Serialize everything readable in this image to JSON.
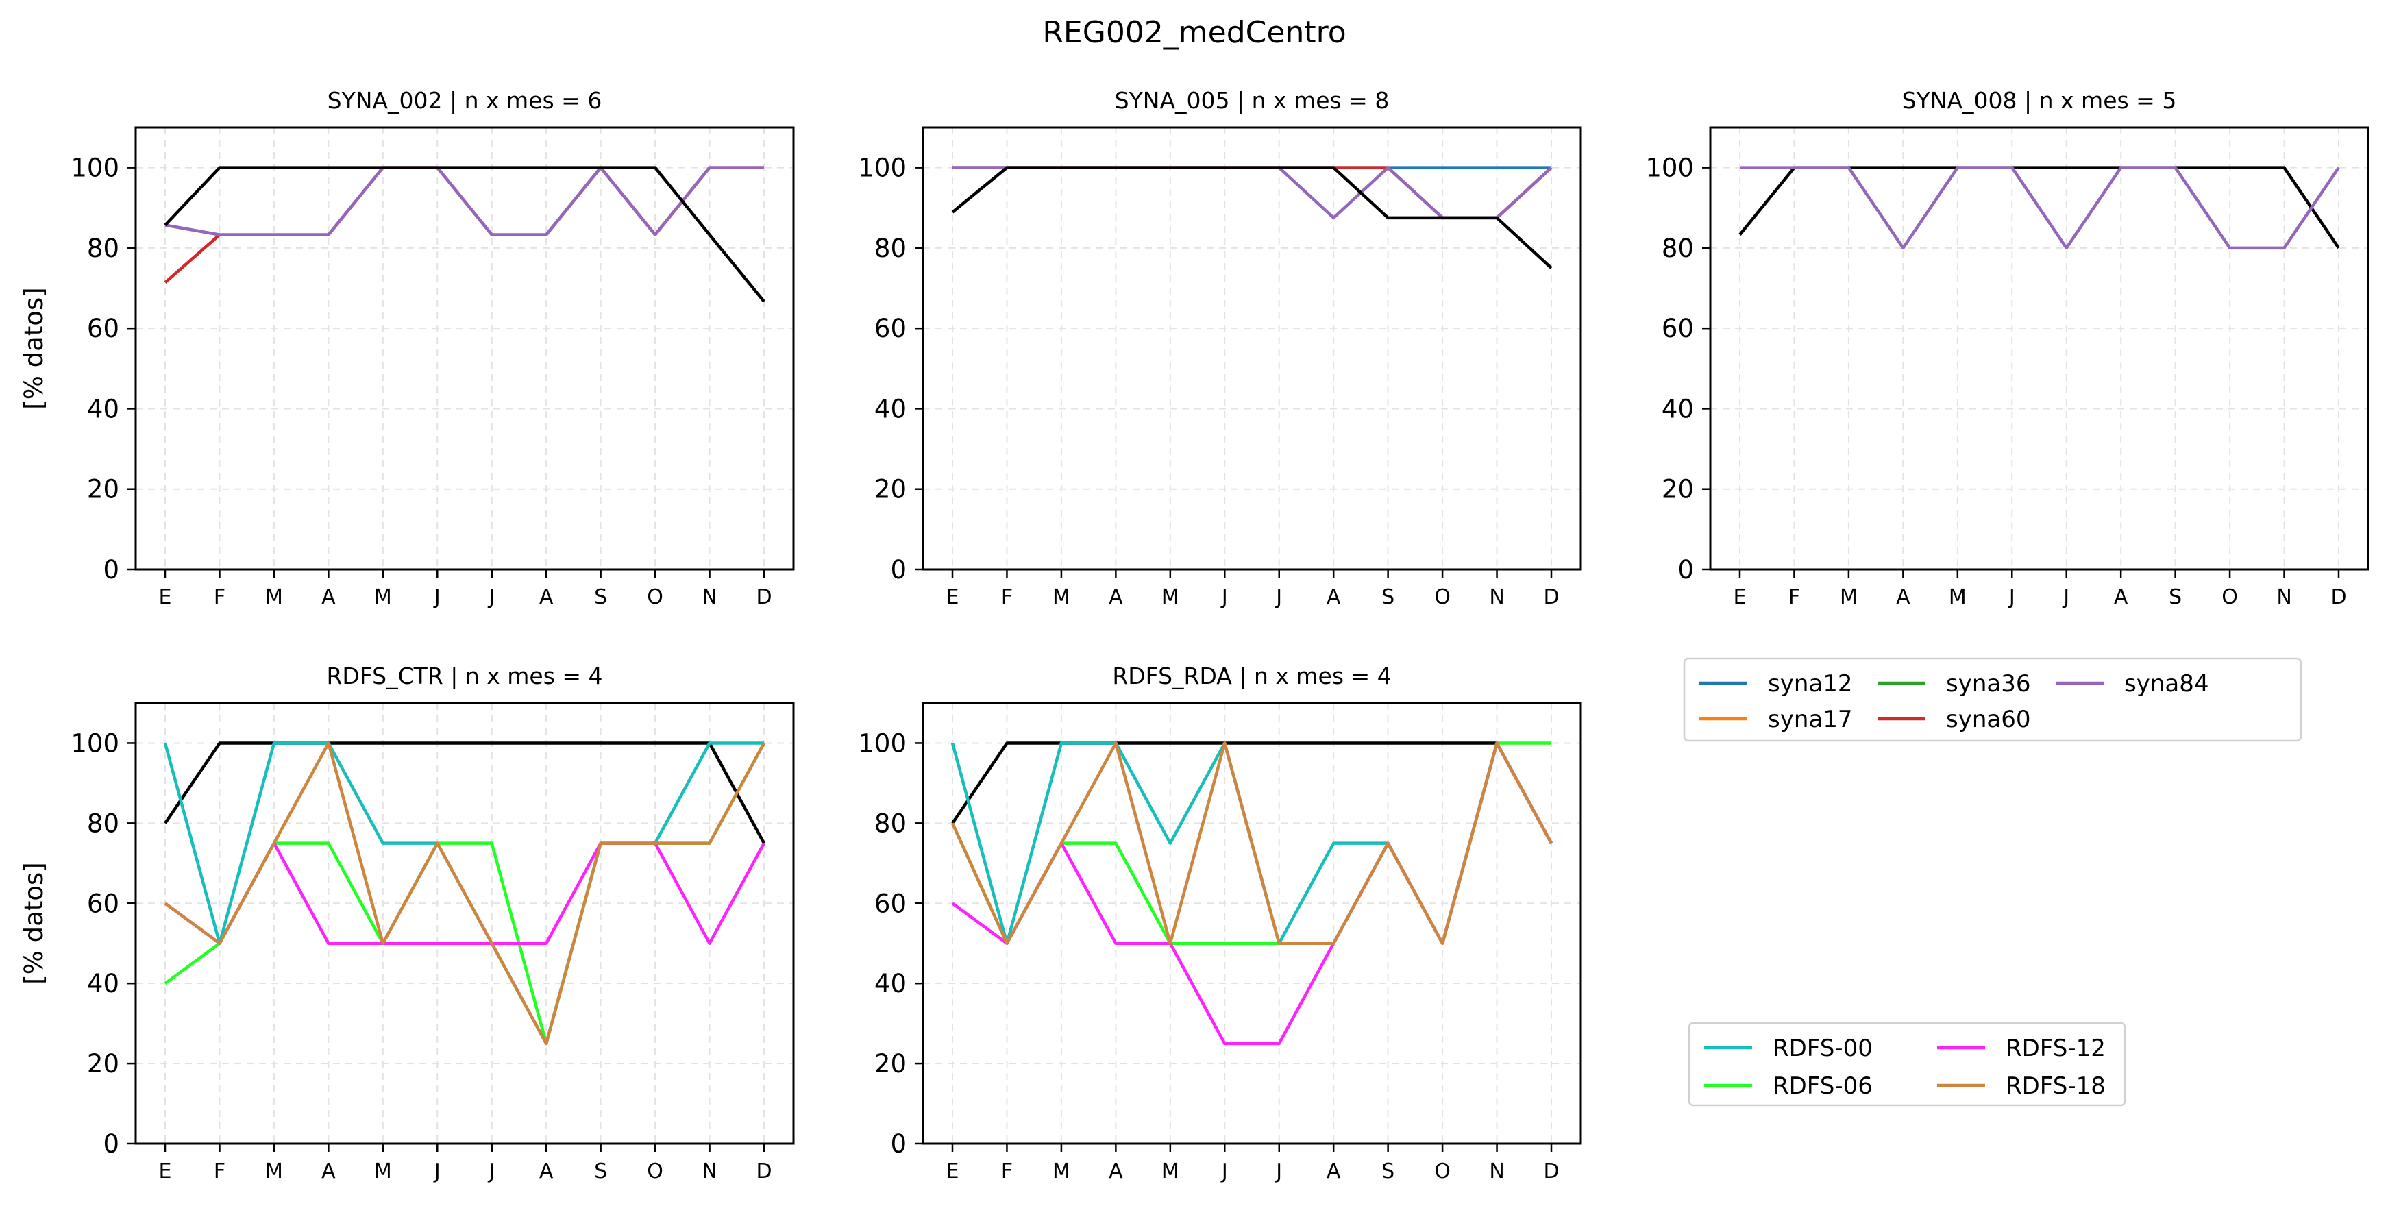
{
  "figure_title": "REG002_medCentro",
  "colors": {
    "syna12": "#1f77b4",
    "syna17": "#ff7f0e",
    "syna36": "#2ca02c",
    "syna60": "#d62728",
    "syna84": "#9467bd",
    "total": "#000000",
    "RDFS-00": "#17bebb",
    "RDFS-06": "#22ff22",
    "RDFS-12": "#ff22ff",
    "RDFS-18": "#cd853f"
  },
  "legends": [
    {
      "name": "synop-legend",
      "ncol": 3,
      "items": [
        "syna12",
        "syna17",
        "syna36",
        "syna60",
        "syna84"
      ]
    },
    {
      "name": "rdfs-legend",
      "ncol": 2,
      "items": [
        "RDFS-00",
        "RDFS-06",
        "RDFS-12",
        "RDFS-18"
      ]
    }
  ],
  "chart_data": [
    {
      "type": "line",
      "title": "SYNA_002 | n x mes =  6",
      "ylabel": "[% datos]",
      "categories": [
        "E",
        "F",
        "M",
        "A",
        "M",
        "J",
        "J",
        "A",
        "S",
        "O",
        "N",
        "D"
      ],
      "ylim": [
        0,
        110
      ],
      "yticks": [
        0,
        20,
        40,
        60,
        80,
        100
      ],
      "grid": true,
      "series": [
        {
          "name": "syna60",
          "color": "#d62728",
          "values": [
            71.4,
            83.3,
            83.3,
            83.3,
            100,
            100,
            83.3,
            83.3,
            100,
            83.3,
            100,
            100
          ]
        },
        {
          "name": "syna84",
          "color": "#9467bd",
          "values": [
            85.7,
            83.3,
            83.3,
            83.3,
            100,
            100,
            83.3,
            83.3,
            100,
            83.3,
            100,
            100
          ]
        },
        {
          "name": "",
          "color": "#000000",
          "values": [
            85.7,
            100,
            100,
            100,
            100,
            100,
            100,
            100,
            100,
            100,
            83.3,
            66.7
          ]
        }
      ]
    },
    {
      "type": "line",
      "title": "SYNA_005 | n x mes =  8",
      "ylabel": "",
      "categories": [
        "E",
        "F",
        "M",
        "A",
        "M",
        "J",
        "J",
        "A",
        "S",
        "O",
        "N",
        "D"
      ],
      "ylim": [
        0,
        110
      ],
      "yticks": [
        0,
        20,
        40,
        60,
        80,
        100
      ],
      "grid": true,
      "series": [
        {
          "name": "syna12",
          "color": "#1f77b4",
          "values": [
            100,
            100,
            100,
            100,
            100,
            100,
            100,
            100,
            100,
            100,
            100,
            100
          ]
        },
        {
          "name": "syna60",
          "color": "#d62728",
          "values": [
            100,
            100,
            100,
            100,
            100,
            100,
            100,
            100,
            100,
            87.5,
            87.5,
            100
          ]
        },
        {
          "name": "syna84",
          "color": "#9467bd",
          "values": [
            100,
            100,
            100,
            100,
            100,
            100,
            100,
            87.5,
            100,
            87.5,
            87.5,
            100
          ]
        },
        {
          "name": "",
          "color": "#000000",
          "values": [
            88.9,
            100,
            100,
            100,
            100,
            100,
            100,
            100,
            87.5,
            87.5,
            87.5,
            75
          ]
        }
      ]
    },
    {
      "type": "line",
      "title": "SYNA_008 | n x mes =  5",
      "ylabel": "",
      "categories": [
        "E",
        "F",
        "M",
        "A",
        "M",
        "J",
        "J",
        "A",
        "S",
        "O",
        "N",
        "D"
      ],
      "ylim": [
        0,
        110
      ],
      "yticks": [
        0,
        20,
        40,
        60,
        80,
        100
      ],
      "grid": true,
      "series": [
        {
          "name": "",
          "color": "#000000",
          "values": [
            83.3,
            100,
            100,
            100,
            100,
            100,
            100,
            100,
            100,
            100,
            100,
            80
          ]
        },
        {
          "name": "syna84",
          "color": "#9467bd",
          "values": [
            100,
            100,
            100,
            80,
            100,
            100,
            80,
            100,
            100,
            80,
            80,
            100
          ]
        }
      ]
    },
    {
      "type": "line",
      "title": "RDFS_CTR | n x mes =  4",
      "ylabel": "[% datos]",
      "categories": [
        "E",
        "F",
        "M",
        "A",
        "M",
        "J",
        "J",
        "A",
        "S",
        "O",
        "N",
        "D"
      ],
      "ylim": [
        0,
        110
      ],
      "yticks": [
        0,
        20,
        40,
        60,
        80,
        100
      ],
      "grid": true,
      "series": [
        {
          "name": "",
          "color": "#000000",
          "values": [
            80,
            100,
            100,
            100,
            100,
            100,
            100,
            100,
            100,
            100,
            100,
            75
          ]
        },
        {
          "name": "RDFS-00",
          "color": "#17bebb",
          "values": [
            100,
            50,
            100,
            100,
            75,
            75,
            50,
            25,
            75,
            75,
            100,
            100
          ]
        },
        {
          "name": "RDFS-06",
          "color": "#22ff22",
          "values": [
            40,
            50,
            75,
            75,
            50,
            75,
            75,
            25,
            75,
            75,
            75,
            100
          ]
        },
        {
          "name": "RDFS-12",
          "color": "#ff22ff",
          "values": [
            60,
            50,
            75,
            50,
            50,
            50,
            50,
            50,
            75,
            75,
            50,
            75
          ]
        },
        {
          "name": "RDFS-18",
          "color": "#cd853f",
          "values": [
            60,
            50,
            75,
            100,
            50,
            75,
            50,
            25,
            75,
            75,
            75,
            100
          ]
        }
      ]
    },
    {
      "type": "line",
      "title": "RDFS_RDA | n x mes =  4",
      "ylabel": "",
      "categories": [
        "E",
        "F",
        "M",
        "A",
        "M",
        "J",
        "J",
        "A",
        "S",
        "O",
        "N",
        "D"
      ],
      "ylim": [
        0,
        110
      ],
      "yticks": [
        0,
        20,
        40,
        60,
        80,
        100
      ],
      "grid": true,
      "series": [
        {
          "name": "",
          "color": "#000000",
          "values": [
            80,
            100,
            100,
            100,
            100,
            100,
            100,
            100,
            100,
            100,
            100,
            75
          ]
        },
        {
          "name": "RDFS-00",
          "color": "#17bebb",
          "values": [
            100,
            50,
            100,
            100,
            75,
            100,
            50,
            75,
            75,
            50,
            100,
            75
          ]
        },
        {
          "name": "RDFS-06",
          "color": "#22ff22",
          "values": [
            80,
            50,
            75,
            75,
            50,
            50,
            50,
            50,
            75,
            50,
            100,
            100
          ]
        },
        {
          "name": "RDFS-12",
          "color": "#ff22ff",
          "values": [
            60,
            50,
            75,
            50,
            50,
            25,
            25,
            50,
            75,
            50,
            100,
            75
          ]
        },
        {
          "name": "RDFS-18",
          "color": "#cd853f",
          "values": [
            80,
            50,
            75,
            100,
            50,
            100,
            50,
            50,
            75,
            50,
            100,
            75
          ]
        }
      ]
    }
  ]
}
